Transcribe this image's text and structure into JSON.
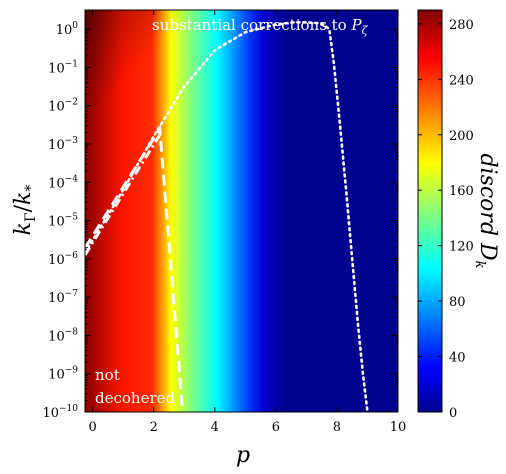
{
  "chart_data": {
    "type": "heatmap",
    "xlabel": "p",
    "ylabel_parts": [
      "k",
      "Γ",
      "/",
      "k",
      "*"
    ],
    "xlim": [
      -0.25,
      10
    ],
    "ylim_log10": [
      -10,
      0.5
    ],
    "y_scale": "log",
    "x_ticks": [
      {
        "v": 0,
        "label": "0"
      },
      {
        "v": 2,
        "label": "2"
      },
      {
        "v": 4,
        "label": "4"
      },
      {
        "v": 6,
        "label": "6"
      },
      {
        "v": 8,
        "label": "8"
      },
      {
        "v": 10,
        "label": "10"
      }
    ],
    "y_ticks": [
      {
        "v": 0,
        "base": "10",
        "exp": "0"
      },
      {
        "v": -1,
        "base": "10",
        "exp": "−1"
      },
      {
        "v": -2,
        "base": "10",
        "exp": "−2"
      },
      {
        "v": -3,
        "base": "10",
        "exp": "−3"
      },
      {
        "v": -4,
        "base": "10",
        "exp": "−4"
      },
      {
        "v": -5,
        "base": "10",
        "exp": "−5"
      },
      {
        "v": -6,
        "base": "10",
        "exp": "−6"
      },
      {
        "v": -7,
        "base": "10",
        "exp": "−7"
      },
      {
        "v": -8,
        "base": "10",
        "exp": "−8"
      },
      {
        "v": -9,
        "base": "10",
        "exp": "−9"
      },
      {
        "v": -10,
        "base": "10",
        "exp": "−10"
      }
    ],
    "colorbar": {
      "label_parts": [
        "discord ",
        "D",
        "k"
      ],
      "range": [
        0,
        290
      ],
      "ticks": [
        {
          "v": 0,
          "label": "0"
        },
        {
          "v": 40,
          "label": "40"
        },
        {
          "v": 80,
          "label": "80"
        },
        {
          "v": 120,
          "label": "120"
        },
        {
          "v": 160,
          "label": "160"
        },
        {
          "v": 200,
          "label": "200"
        },
        {
          "v": 240,
          "label": "240"
        },
        {
          "v": 280,
          "label": "280"
        }
      ],
      "colors": [
        "#00008f",
        "#0000ff",
        "#00ffff",
        "#ffff00",
        "#ff0000",
        "#800000"
      ]
    },
    "annotations": {
      "top_prefix": "substantial corrections to ",
      "top_symbol": "P",
      "top_sub": "ζ",
      "bottom_line1": "not",
      "bottom_line2": "decohered"
    },
    "curves": {
      "dashed": [
        [
          -0.25,
          -5.72
        ],
        [
          2.2,
          -2.6
        ],
        [
          2.95,
          -10
        ]
      ],
      "dashdot": [
        [
          -0.25,
          -5.9
        ],
        [
          2.25,
          -2.7
        ]
      ],
      "dotted": [
        [
          -0.25,
          -5.85
        ],
        [
          1.0,
          -4.2
        ],
        [
          2.0,
          -2.8
        ],
        [
          3.0,
          -1.5
        ],
        [
          4.0,
          -0.55
        ],
        [
          5.0,
          -0.08
        ],
        [
          6.0,
          0.12
        ],
        [
          6.6,
          0.18
        ],
        [
          7.0,
          0.18
        ],
        [
          7.5,
          0.15
        ],
        [
          7.75,
          0.0
        ],
        [
          7.9,
          -0.9
        ],
        [
          8.1,
          -2.5
        ],
        [
          8.3,
          -4.2
        ],
        [
          8.5,
          -6.0
        ],
        [
          8.7,
          -7.8
        ],
        [
          8.85,
          -9.0
        ],
        [
          9.0,
          -10
        ]
      ]
    }
  }
}
